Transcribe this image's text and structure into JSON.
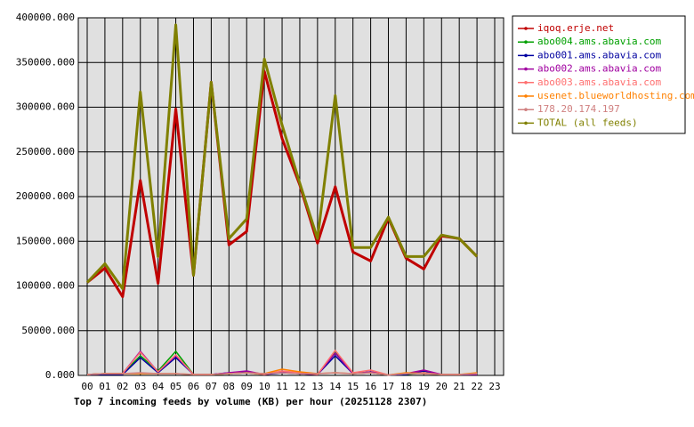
{
  "chart_data": {
    "type": "line",
    "title": "Top 7 incoming feeds by volume (KB) per hour (20251128 2307)",
    "categories": [
      "00",
      "01",
      "02",
      "03",
      "04",
      "05",
      "06",
      "07",
      "08",
      "09",
      "10",
      "11",
      "12",
      "13",
      "14",
      "15",
      "16",
      "17",
      "18",
      "19",
      "20",
      "21",
      "22",
      "23"
    ],
    "ylim": [
      0,
      400000
    ],
    "yticks": [
      {
        "value": 0,
        "label": "0.000"
      },
      {
        "value": 50000,
        "label": "50000.000"
      },
      {
        "value": 100000,
        "label": "100000.000"
      },
      {
        "value": 150000,
        "label": "150000.000"
      },
      {
        "value": 200000,
        "label": "200000.000"
      },
      {
        "value": 250000,
        "label": "250000.000"
      },
      {
        "value": 300000,
        "label": "300000.000"
      },
      {
        "value": 350000,
        "label": "350000.000"
      },
      {
        "value": 400000,
        "label": "400000.000"
      }
    ],
    "grid": true,
    "legend": "right",
    "series": [
      {
        "name": "iqoq.erje.net",
        "color": "#c00000",
        "values": [
          104000,
          120000,
          88000,
          218000,
          103000,
          298000,
          112000,
          328000,
          146000,
          161000,
          340000,
          265000,
          213000,
          148000,
          211000,
          138000,
          128000,
          176000,
          131000,
          119000,
          156000,
          153000,
          133000,
          null
        ]
      },
      {
        "name": "abo004.ams.abavia.com",
        "color": "#00a000",
        "values": [
          1000,
          2000,
          2000,
          22000,
          5000,
          27000,
          1000,
          1000,
          2000,
          3000,
          1000,
          4000,
          2000,
          1000,
          26000,
          2000,
          4000,
          500,
          1000,
          3000,
          1000,
          1000,
          1000,
          null
        ]
      },
      {
        "name": "abo001.ams.abavia.com",
        "color": "#0000a0",
        "values": [
          1000,
          1000,
          1000,
          20000,
          3000,
          20000,
          1000,
          1000,
          3000,
          4000,
          1000,
          3000,
          2000,
          1000,
          22000,
          2000,
          3000,
          500,
          1000,
          5000,
          1000,
          1000,
          1000,
          null
        ]
      },
      {
        "name": "abo002.ams.abavia.com",
        "color": "#a000a0",
        "values": [
          1000,
          2000,
          2000,
          27000,
          4000,
          22000,
          1000,
          1000,
          3000,
          5000,
          1000,
          4000,
          2000,
          1000,
          25000,
          2000,
          4000,
          500,
          2000,
          6000,
          1000,
          1000,
          1000,
          null
        ]
      },
      {
        "name": "abo003.ams.abavia.com",
        "color": "#ff7070",
        "values": [
          1000,
          2000,
          2000,
          26000,
          4000,
          23000,
          1000,
          1000,
          2000,
          3000,
          1000,
          5000,
          3000,
          1000,
          28000,
          3000,
          6000,
          500,
          2000,
          3000,
          1000,
          1000,
          2000,
          null
        ]
      },
      {
        "name": "usenet.blueworldhosting.com",
        "color": "#ff8000",
        "values": [
          1000,
          2000,
          2000,
          2000,
          2000,
          2000,
          1000,
          1000,
          2000,
          3000,
          2000,
          7000,
          4000,
          2000,
          3000,
          2000,
          3000,
          500,
          3000,
          2000,
          1000,
          1000,
          3000,
          null
        ]
      },
      {
        "name": "178.20.174.197",
        "color": "#d08080",
        "values": [
          1000,
          2000,
          2000,
          3000,
          2000,
          2000,
          1000,
          1000,
          2000,
          3000,
          2000,
          3000,
          2000,
          2000,
          3000,
          2000,
          3000,
          500,
          2000,
          2000,
          1000,
          1000,
          2000,
          null
        ]
      },
      {
        "name": "TOTAL (all feeds)",
        "color": "#808000",
        "values": [
          104000,
          125000,
          97000,
          317000,
          133000,
          392000,
          112000,
          328000,
          153000,
          175000,
          354000,
          280000,
          215000,
          153000,
          313000,
          143000,
          143000,
          177000,
          133000,
          133000,
          157000,
          153000,
          133000,
          null
        ]
      }
    ]
  }
}
